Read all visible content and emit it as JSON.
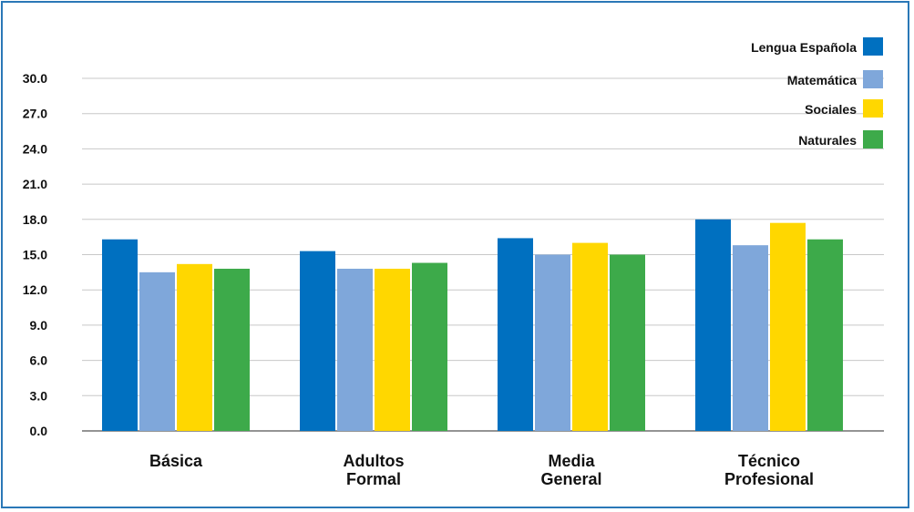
{
  "chart_data": {
    "type": "bar",
    "categories": [
      [
        "Básica"
      ],
      [
        "Adultos",
        "Formal"
      ],
      [
        "Media",
        "General"
      ],
      [
        "Técnico",
        "Profesional"
      ]
    ],
    "series": [
      {
        "name": "Lengua Española",
        "color": "#0070c0",
        "values": [
          16.3,
          15.3,
          16.4,
          18.0
        ]
      },
      {
        "name": "Matemática",
        "color": "#7fa7da",
        "values": [
          13.5,
          13.8,
          15.0,
          15.8
        ]
      },
      {
        "name": "Sociales",
        "color": "#ffd700",
        "values": [
          14.2,
          13.8,
          16.0,
          17.7
        ]
      },
      {
        "name": "Naturales",
        "color": "#3daa4a",
        "values": [
          13.8,
          14.3,
          15.0,
          16.3
        ]
      }
    ],
    "yticks": [
      "0.0",
      "3.0",
      "6.0",
      "9.0",
      "12.0",
      "15.0",
      "18.0",
      "21.0",
      "24.0",
      "27.0",
      "30.0"
    ],
    "ylim": [
      0,
      30
    ],
    "grid": true,
    "legend_position": "top-right"
  }
}
